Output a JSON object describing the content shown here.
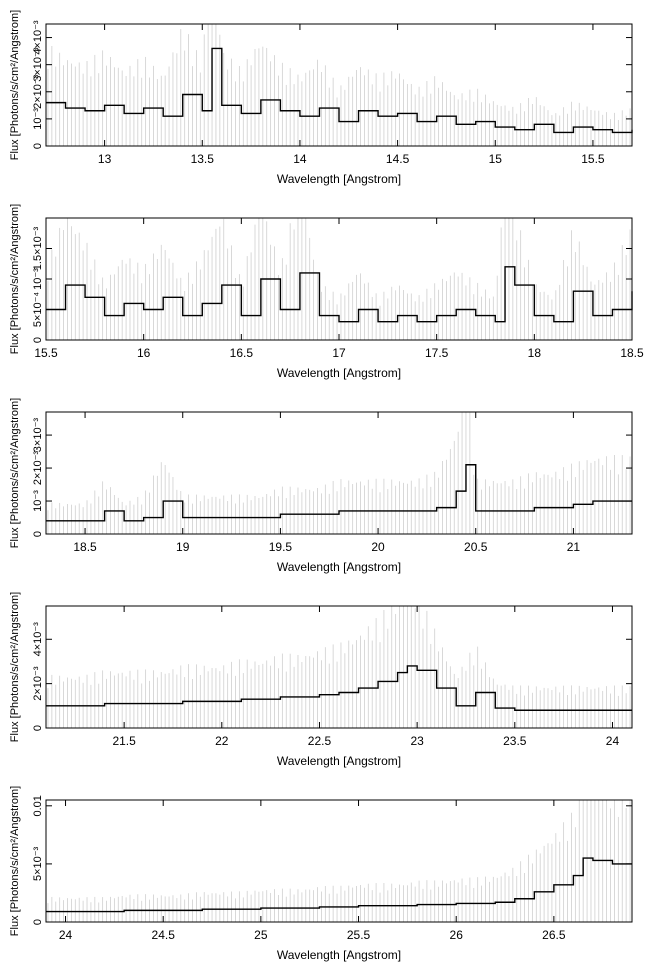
{
  "chart_data": [
    {
      "type": "line",
      "xlabel": "Wavelength [Angstrom]",
      "ylabel": "Flux [Photons/s/cm²/Angstrom]",
      "xlim": [
        12.7,
        15.7
      ],
      "ylim": [
        0,
        0.0045
      ],
      "xticks": [
        13,
        13.5,
        14,
        14.5,
        15,
        15.5
      ],
      "xtick_labels": [
        "13",
        "13.5",
        "14",
        "14.5",
        "15",
        "15.5"
      ],
      "yticks": [
        0,
        0.001,
        0.002,
        0.003,
        0.004
      ],
      "ytick_labels": [
        "0",
        "10⁻³",
        "2×10⁻³",
        "3×10⁻³",
        "4×10⁻³"
      ],
      "series": [
        {
          "x": [
            12.7,
            12.8,
            12.9,
            13.0,
            13.1,
            13.2,
            13.3,
            13.4,
            13.5,
            13.55,
            13.6,
            13.7,
            13.8,
            13.9,
            14.0,
            14.1,
            14.2,
            14.3,
            14.4,
            14.5,
            14.6,
            14.7,
            14.8,
            14.9,
            15.0,
            15.1,
            15.2,
            15.3,
            15.4,
            15.5,
            15.6,
            15.7
          ],
          "y": [
            0.0016,
            0.0014,
            0.0013,
            0.0015,
            0.0012,
            0.0014,
            0.0011,
            0.0019,
            0.0013,
            0.0036,
            0.0015,
            0.0012,
            0.0017,
            0.0013,
            0.0011,
            0.0014,
            0.0009,
            0.0013,
            0.0011,
            0.0012,
            0.0009,
            0.0011,
            0.0008,
            0.0009,
            0.0007,
            0.0006,
            0.0008,
            0.0005,
            0.0007,
            0.0006,
            0.0005,
            0.0006
          ]
        }
      ]
    },
    {
      "type": "line",
      "xlabel": "Wavelength [Angstrom]",
      "ylabel": "Flux [Photons/s/cm²/Angstrom]",
      "xlim": [
        15.5,
        18.5
      ],
      "ylim": [
        0,
        0.002
      ],
      "xticks": [
        15.5,
        16,
        16.5,
        17,
        17.5,
        18,
        18.5
      ],
      "xtick_labels": [
        "15.5",
        "16",
        "16.5",
        "17",
        "17.5",
        "18",
        "18.5"
      ],
      "yticks": [
        0,
        0.0005,
        0.001,
        0.0015
      ],
      "ytick_labels": [
        "0",
        "5×10⁻⁴",
        "10⁻³",
        "1.5×10⁻³"
      ],
      "series": [
        {
          "x": [
            15.5,
            15.6,
            15.7,
            15.8,
            15.9,
            16.0,
            16.1,
            16.2,
            16.3,
            16.4,
            16.5,
            16.6,
            16.7,
            16.8,
            16.9,
            17.0,
            17.1,
            17.2,
            17.3,
            17.4,
            17.5,
            17.6,
            17.7,
            17.8,
            17.85,
            17.9,
            18.0,
            18.1,
            18.2,
            18.3,
            18.4,
            18.5
          ],
          "y": [
            0.0005,
            0.0009,
            0.0007,
            0.0004,
            0.0006,
            0.0005,
            0.0007,
            0.0004,
            0.0006,
            0.0009,
            0.0004,
            0.001,
            0.0005,
            0.0011,
            0.0004,
            0.0003,
            0.0005,
            0.0003,
            0.0004,
            0.0003,
            0.0004,
            0.0005,
            0.0004,
            0.0003,
            0.0012,
            0.0009,
            0.0004,
            0.0003,
            0.0008,
            0.0004,
            0.0005,
            0.0008
          ]
        }
      ]
    },
    {
      "type": "line",
      "xlabel": "Wavelength [Angstrom]",
      "ylabel": "Flux [Photons/s/cm²/Angstrom]",
      "xlim": [
        18.3,
        21.3
      ],
      "ylim": [
        0,
        0.0037
      ],
      "xticks": [
        18.5,
        19,
        19.5,
        20,
        20.5,
        21
      ],
      "xtick_labels": [
        "18.5",
        "19",
        "19.5",
        "20",
        "20.5",
        "21"
      ],
      "yticks": [
        0,
        0.001,
        0.002,
        0.003
      ],
      "ytick_labels": [
        "0",
        "10⁻³",
        "2×10⁻³",
        "3×10⁻³"
      ],
      "series": [
        {
          "x": [
            18.3,
            18.4,
            18.5,
            18.6,
            18.7,
            18.8,
            18.9,
            19.0,
            19.1,
            19.2,
            19.3,
            19.4,
            19.5,
            19.6,
            19.7,
            19.8,
            19.9,
            20.0,
            20.1,
            20.2,
            20.3,
            20.4,
            20.45,
            20.5,
            20.6,
            20.7,
            20.8,
            20.9,
            21.0,
            21.1,
            21.2,
            21.3
          ],
          "y": [
            0.0004,
            0.0004,
            0.0004,
            0.0007,
            0.0004,
            0.0005,
            0.001,
            0.0005,
            0.0005,
            0.0005,
            0.0005,
            0.0005,
            0.0006,
            0.0006,
            0.0006,
            0.0007,
            0.0007,
            0.0007,
            0.0007,
            0.0007,
            0.0008,
            0.0013,
            0.0021,
            0.0007,
            0.0007,
            0.0007,
            0.0008,
            0.0008,
            0.0009,
            0.001,
            0.001,
            0.001
          ]
        }
      ]
    },
    {
      "type": "line",
      "xlabel": "Wavelength [Angstrom]",
      "ylabel": "Flux [Photons/s/cm²/Angstrom]",
      "xlim": [
        21.1,
        24.1
      ],
      "ylim": [
        0,
        0.0055
      ],
      "xticks": [
        21.5,
        22,
        22.5,
        23,
        23.5,
        24
      ],
      "xtick_labels": [
        "21.5",
        "22",
        "22.5",
        "23",
        "23.5",
        "24"
      ],
      "yticks": [
        0,
        0.002,
        0.004
      ],
      "ytick_labels": [
        "0",
        "2×10⁻³",
        "4×10⁻³"
      ],
      "series": [
        {
          "x": [
            21.1,
            21.2,
            21.3,
            21.4,
            21.5,
            21.6,
            21.7,
            21.8,
            21.9,
            22.0,
            22.1,
            22.2,
            22.3,
            22.4,
            22.5,
            22.6,
            22.7,
            22.8,
            22.9,
            22.95,
            23.0,
            23.1,
            23.2,
            23.3,
            23.4,
            23.5,
            23.6,
            23.7,
            23.8,
            23.9,
            24.0,
            24.1
          ],
          "y": [
            0.001,
            0.001,
            0.001,
            0.0011,
            0.0011,
            0.0011,
            0.0011,
            0.0012,
            0.0012,
            0.0012,
            0.0013,
            0.0013,
            0.0014,
            0.0014,
            0.0015,
            0.0016,
            0.0018,
            0.0021,
            0.0025,
            0.0028,
            0.0026,
            0.0018,
            0.001,
            0.0016,
            0.0009,
            0.0008,
            0.0008,
            0.0008,
            0.0008,
            0.0008,
            0.0008,
            0.0008
          ]
        }
      ]
    },
    {
      "type": "line",
      "xlabel": "Wavelength [Angstrom]",
      "ylabel": "Flux [Photons/s/cm²/Angstrom]",
      "xlim": [
        23.9,
        26.9
      ],
      "ylim": [
        0,
        0.0105
      ],
      "xticks": [
        24,
        24.5,
        25,
        25.5,
        26,
        26.5
      ],
      "xtick_labels": [
        "24",
        "24.5",
        "25",
        "25.5",
        "26",
        "26.5"
      ],
      "yticks": [
        0,
        0.005,
        0.01
      ],
      "ytick_labels": [
        "0",
        "5×10⁻³",
        "0.01"
      ],
      "series": [
        {
          "x": [
            23.9,
            24.0,
            24.1,
            24.2,
            24.3,
            24.4,
            24.5,
            24.6,
            24.7,
            24.8,
            24.9,
            25.0,
            25.1,
            25.2,
            25.3,
            25.4,
            25.5,
            25.6,
            25.7,
            25.8,
            25.9,
            26.0,
            26.1,
            26.2,
            26.3,
            26.4,
            26.5,
            26.6,
            26.65,
            26.7,
            26.8,
            26.9
          ],
          "y": [
            0.0009,
            0.0009,
            0.0009,
            0.0009,
            0.001,
            0.001,
            0.001,
            0.001,
            0.0011,
            0.0011,
            0.0011,
            0.0012,
            0.0012,
            0.0012,
            0.0013,
            0.0013,
            0.0014,
            0.0014,
            0.0014,
            0.0015,
            0.0015,
            0.0016,
            0.0016,
            0.0017,
            0.002,
            0.0026,
            0.0032,
            0.004,
            0.0055,
            0.0053,
            0.005,
            0.005
          ]
        }
      ]
    }
  ]
}
